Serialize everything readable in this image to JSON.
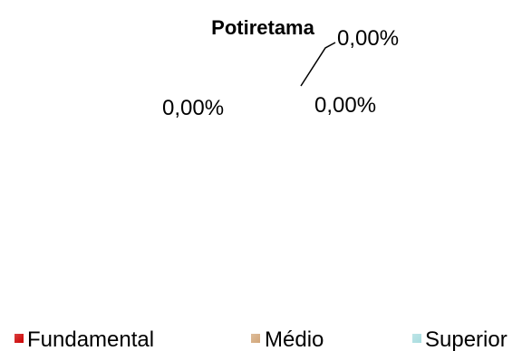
{
  "chart_data": {
    "type": "pie",
    "title": "Potiretama",
    "categories": [
      "Fundamental",
      "Médio",
      "Superior"
    ],
    "values": [
      0,
      0,
      0
    ],
    "data_labels": [
      "0,00%",
      "0,00%",
      "0,00%"
    ],
    "colors": [
      "#cc0000",
      "#d2a679",
      "#a8dcdf"
    ],
    "legend": {
      "position": "bottom",
      "entries": [
        "Fundamental",
        "Médio",
        "Superior"
      ]
    },
    "grid": false
  }
}
